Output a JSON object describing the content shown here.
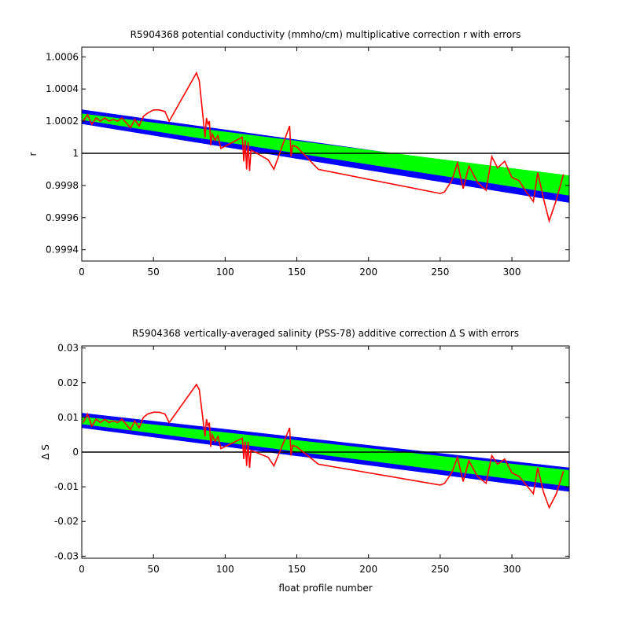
{
  "chart_data": [
    {
      "type": "line",
      "title": "R5904368 potential conductivity (mmho/cm) multiplicative correction r with errors",
      "xlabel": "",
      "ylabel": "r",
      "xlim": [
        0,
        340
      ],
      "ylim": [
        0.99933,
        1.00066
      ],
      "xticks": [
        0,
        50,
        100,
        150,
        200,
        250,
        300
      ],
      "xtick_labels": [
        "0",
        "50",
        "100",
        "150",
        "200",
        "250",
        "300"
      ],
      "yticks": [
        0.9994,
        0.9996,
        0.9998,
        1.0,
        1.0002,
        1.0004,
        1.0006
      ],
      "ytick_labels": [
        "0.9994",
        "0.9996",
        "0.9998",
        "1",
        "1.0002",
        "1.0004",
        "1.0006"
      ],
      "reference_line": 1.0,
      "grid": false,
      "colors": {
        "fit_band": "#00ff00",
        "error_band": "#0000ff",
        "series": "#ff0000",
        "reference": "#000000"
      },
      "fit_band": {
        "x": [
          0,
          340
        ],
        "upper": [
          1.000245,
          0.99986
        ],
        "lower": [
          1.00021,
          0.99974
        ]
      },
      "error_band": {
        "x": [
          0,
          340
        ],
        "upper": [
          1.00027,
          0.999845
        ],
        "lower": [
          1.000185,
          0.999695
        ]
      },
      "series": [
        {
          "x": [
            1,
            4,
            7,
            10,
            13,
            16,
            19,
            22,
            25,
            28,
            31,
            34,
            37,
            40,
            43,
            46,
            50,
            54,
            58,
            61,
            80,
            82,
            86,
            87,
            88,
            89,
            90,
            91,
            93,
            95,
            97,
            112,
            113,
            114,
            115,
            116,
            117,
            118,
            130,
            134,
            140,
            145,
            146,
            147,
            150,
            165,
            250,
            253,
            258,
            262,
            266,
            270,
            276,
            282,
            286,
            290,
            295,
            300,
            305,
            310,
            315,
            318,
            322,
            326,
            331,
            336
          ],
          "values": [
            1.0002,
            1.00024,
            1.00018,
            1.00022,
            1.0002,
            1.00022,
            1.0002,
            1.00021,
            1.0002,
            1.00022,
            1.00019,
            1.00016,
            1.00021,
            1.00017,
            1.00023,
            1.00025,
            1.00027,
            1.00027,
            1.00026,
            1.0002,
            1.0005,
            1.00045,
            1.0001,
            1.00022,
            1.00018,
            1.0002,
            1.00005,
            1.00012,
            1.00008,
            1.00011,
            1.00003,
            1.0001,
            0.99995,
            1.00008,
            0.9999,
            1.00007,
            0.99989,
            1.00002,
            0.99996,
            0.9999,
            1.00005,
            1.00017,
            0.99998,
            1.00005,
            1.00004,
            0.9999,
            0.99975,
            0.99976,
            0.99983,
            0.99994,
            0.99978,
            0.99992,
            0.99982,
            0.99977,
            0.99998,
            0.99991,
            0.99995,
            0.99985,
            0.99983,
            0.99976,
            0.9997,
            0.99988,
            0.99972,
            0.99958,
            0.99971,
            0.99987
          ]
        }
      ]
    },
    {
      "type": "line",
      "title": "R5904368 vertically-averaged salinity (PSS-78) additive correction Δ S with errors",
      "xlabel": "float profile number",
      "ylabel": "Δ S",
      "xlim": [
        0,
        340
      ],
      "ylim": [
        -0.0306,
        0.0306
      ],
      "xticks": [
        0,
        50,
        100,
        150,
        200,
        250,
        300
      ],
      "xtick_labels": [
        "0",
        "50",
        "100",
        "150",
        "200",
        "250",
        "300"
      ],
      "yticks": [
        -0.03,
        -0.02,
        -0.01,
        0,
        0.01,
        0.02,
        0.03
      ],
      "ytick_labels": [
        "-0.03",
        "-0.02",
        "-0.01",
        "0",
        "0.01",
        "0.02",
        "0.03"
      ],
      "reference_line": 0,
      "grid": false,
      "colors": {
        "fit_band": "#00ff00",
        "error_band": "#0000ff",
        "series": "#ff0000",
        "reference": "#000000"
      },
      "fit_band": {
        "x": [
          0,
          340
        ],
        "upper": [
          0.0101,
          -0.0053
        ],
        "lower": [
          0.0082,
          -0.0098
        ]
      },
      "error_band": {
        "x": [
          0,
          340
        ],
        "upper": [
          0.0112,
          -0.0046
        ],
        "lower": [
          0.0071,
          -0.0113
        ]
      },
      "series": [
        {
          "x": [
            1,
            4,
            7,
            10,
            13,
            16,
            19,
            22,
            25,
            28,
            31,
            34,
            37,
            40,
            43,
            46,
            50,
            54,
            58,
            61,
            80,
            82,
            86,
            87,
            88,
            89,
            90,
            91,
            93,
            95,
            97,
            112,
            113,
            114,
            115,
            116,
            117,
            118,
            130,
            134,
            140,
            145,
            146,
            147,
            150,
            165,
            250,
            253,
            258,
            262,
            266,
            270,
            276,
            282,
            286,
            290,
            295,
            300,
            305,
            310,
            315,
            318,
            322,
            326,
            331,
            336
          ],
          "values": [
            0.0085,
            0.011,
            0.0075,
            0.0095,
            0.0085,
            0.0095,
            0.0085,
            0.009,
            0.0085,
            0.0095,
            0.008,
            0.0065,
            0.009,
            0.007,
            0.01,
            0.011,
            0.0115,
            0.0115,
            0.011,
            0.0085,
            0.0195,
            0.018,
            0.0045,
            0.0095,
            0.0075,
            0.0085,
            0.0015,
            0.005,
            0.003,
            0.0045,
            0.001,
            0.004,
            -0.002,
            0.003,
            -0.004,
            0.003,
            -0.0045,
            0.0005,
            -0.0015,
            -0.004,
            0.002,
            0.007,
            -0.001,
            0.002,
            0.0015,
            -0.0035,
            -0.0095,
            -0.009,
            -0.006,
            -0.0015,
            -0.0085,
            -0.0025,
            -0.007,
            -0.009,
            -0.001,
            -0.0035,
            -0.002,
            -0.006,
            -0.007,
            -0.0095,
            -0.012,
            -0.0045,
            -0.0115,
            -0.016,
            -0.012,
            -0.0055
          ]
        }
      ]
    }
  ]
}
